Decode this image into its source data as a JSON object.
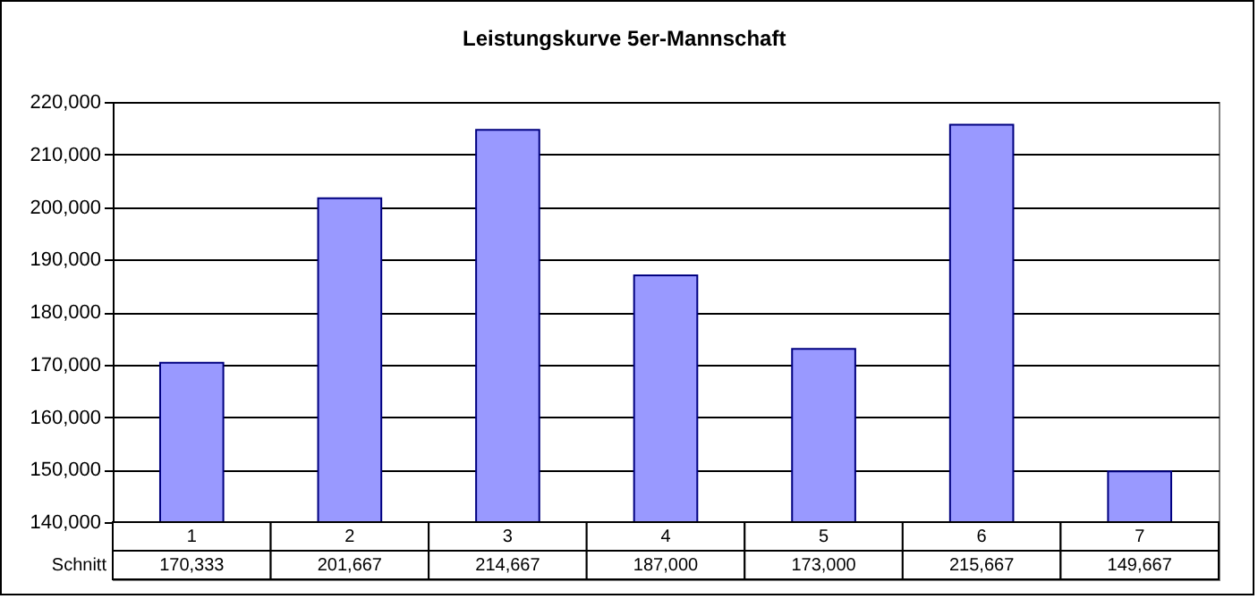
{
  "chart_data": {
    "type": "bar",
    "title": "Leistungskurve 5er-Mannschaft",
    "categories": [
      "1",
      "2",
      "3",
      "4",
      "5",
      "6",
      "7"
    ],
    "series": [
      {
        "name": "Schnitt",
        "color": "#9999ff",
        "values": [
          170333,
          201667,
          214667,
          187000,
          173000,
          215667,
          149667
        ],
        "value_labels": [
          "170,333",
          "201,667",
          "214,667",
          "187,000",
          "173,000",
          "215,667",
          "149,667"
        ]
      }
    ],
    "ylim": [
      140000,
      220000
    ],
    "yticks": [
      {
        "value": 140000,
        "label": "140,000"
      },
      {
        "value": 150000,
        "label": "150,000"
      },
      {
        "value": 160000,
        "label": "160,000"
      },
      {
        "value": 170000,
        "label": "170,000"
      },
      {
        "value": 180000,
        "label": "180,000"
      },
      {
        "value": 190000,
        "label": "190,000"
      },
      {
        "value": 200000,
        "label": "200,000"
      },
      {
        "value": 210000,
        "label": "210,000"
      },
      {
        "value": 220000,
        "label": "220,000"
      }
    ],
    "grid": "y"
  }
}
